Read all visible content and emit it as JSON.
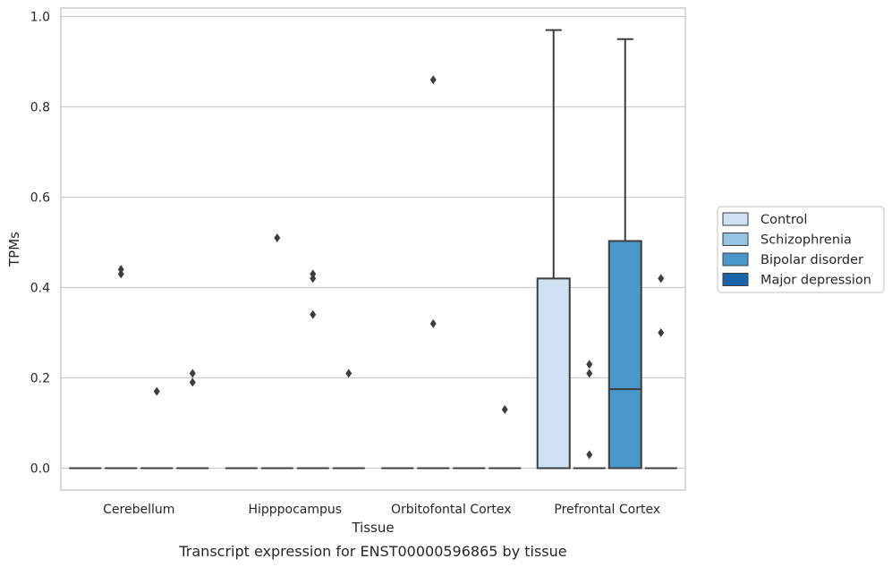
{
  "chart_data": {
    "type": "box",
    "title": "",
    "caption": "Transcript expression for ENST00000596865 by tissue",
    "xlabel": "Tissue",
    "ylabel": "TPMs",
    "ylim": [
      -0.047,
      1.02
    ],
    "yticks": [
      0.0,
      0.2,
      0.4,
      0.6,
      0.8,
      1.0
    ],
    "ytick_labels": [
      "0.0",
      "0.2",
      "0.4",
      "0.6",
      "0.8",
      "1.0"
    ],
    "grid": "horizontal",
    "legend_position": "right",
    "categories": [
      "Cerebellum",
      "Hipppocampus",
      "Orbitofontal Cortex",
      "Prefrontal Cortex"
    ],
    "series": [
      {
        "name": "Control",
        "color": "#d0e1f2",
        "boxes": [
          {
            "min": 0,
            "q1": 0,
            "median": 0,
            "q3": 0,
            "max": 0,
            "outliers": []
          },
          {
            "min": 0,
            "q1": 0,
            "median": 0,
            "q3": 0,
            "max": 0,
            "outliers": []
          },
          {
            "min": 0,
            "q1": 0,
            "median": 0,
            "q3": 0,
            "max": 0,
            "outliers": []
          },
          {
            "min": 0,
            "q1": 0,
            "median": 0,
            "q3": 0.42,
            "max": 0.97,
            "outliers": []
          }
        ]
      },
      {
        "name": "Schizophrenia",
        "color": "#94c4df",
        "boxes": [
          {
            "min": 0,
            "q1": 0,
            "median": 0,
            "q3": 0,
            "max": 0,
            "outliers": [
              0.43,
              0.44
            ]
          },
          {
            "min": 0,
            "q1": 0,
            "median": 0,
            "q3": 0,
            "max": 0,
            "outliers": [
              0.51
            ]
          },
          {
            "min": 0,
            "q1": 0,
            "median": 0,
            "q3": 0,
            "max": 0,
            "outliers": [
              0.86,
              0.32
            ]
          },
          {
            "min": 0,
            "q1": 0,
            "median": 0,
            "q3": 0,
            "max": 0,
            "outliers": [
              0.23,
              0.21,
              0.03
            ]
          }
        ]
      },
      {
        "name": "Bipolar disorder",
        "color": "#4a98c9",
        "boxes": [
          {
            "min": 0,
            "q1": 0,
            "median": 0,
            "q3": 0,
            "max": 0,
            "outliers": [
              0.17
            ]
          },
          {
            "min": 0,
            "q1": 0,
            "median": 0,
            "q3": 0,
            "max": 0,
            "outliers": [
              0.43,
              0.42,
              0.34
            ]
          },
          {
            "min": 0,
            "q1": 0,
            "median": 0,
            "q3": 0,
            "max": 0,
            "outliers": []
          },
          {
            "min": 0,
            "q1": 0,
            "median": 0.175,
            "q3": 0.503,
            "max": 0.95,
            "outliers": []
          }
        ]
      },
      {
        "name": "Major depression",
        "color": "#1764ab",
        "boxes": [
          {
            "min": 0,
            "q1": 0,
            "median": 0,
            "q3": 0,
            "max": 0,
            "outliers": [
              0.19,
              0.21
            ]
          },
          {
            "min": 0,
            "q1": 0,
            "median": 0,
            "q3": 0,
            "max": 0,
            "outliers": [
              0.21
            ]
          },
          {
            "min": 0,
            "q1": 0,
            "median": 0,
            "q3": 0,
            "max": 0,
            "outliers": [
              0.13
            ]
          },
          {
            "min": 0,
            "q1": 0,
            "median": 0,
            "q3": 0,
            "max": 0,
            "outliers": [
              0.42,
              0.3
            ]
          }
        ]
      }
    ]
  }
}
